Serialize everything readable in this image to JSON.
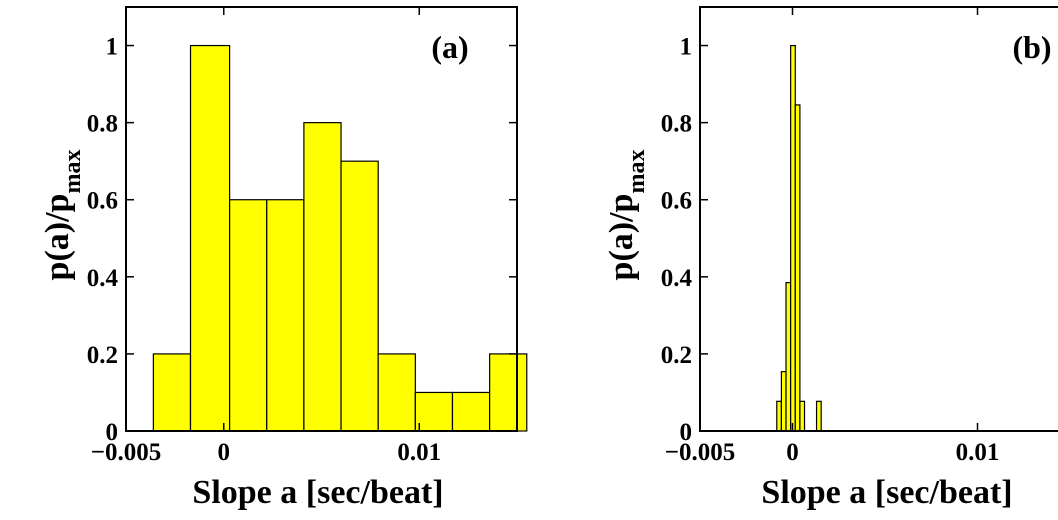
{
  "chart_data": [
    {
      "type": "bar",
      "panel_label": "(a)",
      "xlabel": "Slope a [sec/beat]",
      "ylabel": "p(a)/p",
      "ylabel_subscript": "max",
      "xlim": [
        -0.005,
        0.015
      ],
      "ylim": [
        0,
        1.1
      ],
      "xticks": [
        -0.005,
        0,
        0.01
      ],
      "xtick_labels": [
        "−0.005",
        "0",
        "0.01"
      ],
      "yticks": [
        0,
        0.2,
        0.4,
        0.6,
        0.8,
        1
      ],
      "ytick_labels": [
        "0",
        "0.2",
        "0.4",
        "0.6",
        "0.8",
        "1"
      ],
      "bin_width": 0.002,
      "bin_centers": [
        -0.002,
        0.0,
        0.002,
        0.0035,
        0.0055,
        0.0075,
        0.0095,
        0.0115,
        0.0133,
        0.015
      ],
      "bins": [
        {
          "left": -0.0036,
          "right": -0.0017,
          "value": 0.2
        },
        {
          "left": -0.0017,
          "right": 0.0003,
          "value": 1.0
        },
        {
          "left": 0.0003,
          "right": 0.0022,
          "value": 0.6
        },
        {
          "left": 0.0022,
          "right": 0.0041,
          "value": 0.6
        },
        {
          "left": 0.0041,
          "right": 0.006,
          "value": 0.8
        },
        {
          "left": 0.006,
          "right": 0.0079,
          "value": 0.7
        },
        {
          "left": 0.0079,
          "right": 0.0098,
          "value": 0.2
        },
        {
          "left": 0.0098,
          "right": 0.0117,
          "value": 0.1
        },
        {
          "left": 0.0117,
          "right": 0.0136,
          "value": 0.1
        },
        {
          "left": 0.0136,
          "right": 0.0155,
          "value": 0.2
        }
      ],
      "bar_color": "#ffff00",
      "edge_color": "#000000",
      "grid": false
    },
    {
      "type": "bar",
      "panel_label": "(b)",
      "xlabel": "Slope a [sec/beat]",
      "ylabel": "p(a)/p",
      "ylabel_subscript": "max",
      "xlim": [
        -0.005,
        0.015
      ],
      "ylim": [
        0,
        1.1
      ],
      "xticks": [
        -0.005,
        0,
        0.01
      ],
      "xtick_labels": [
        "−0.005",
        "0",
        "0.01"
      ],
      "yticks": [
        0,
        0.2,
        0.4,
        0.6,
        0.8,
        1
      ],
      "ytick_labels": [
        "0",
        "0.2",
        "0.4",
        "0.6",
        "0.8",
        "1"
      ],
      "bins": [
        {
          "left": -0.00085,
          "right": -0.0006,
          "value": 0.077
        },
        {
          "left": -0.0006,
          "right": -0.00035,
          "value": 0.154
        },
        {
          "left": -0.00035,
          "right": -0.0001,
          "value": 0.385
        },
        {
          "left": -0.0001,
          "right": 0.00015,
          "value": 1.0
        },
        {
          "left": 0.00015,
          "right": 0.0004,
          "value": 0.846
        },
        {
          "left": 0.0004,
          "right": 0.00065,
          "value": 0.077
        },
        {
          "left": 0.0013,
          "right": 0.00155,
          "value": 0.077
        }
      ],
      "bar_color": "#ffff00",
      "edge_color": "#000000",
      "grid": false
    }
  ]
}
